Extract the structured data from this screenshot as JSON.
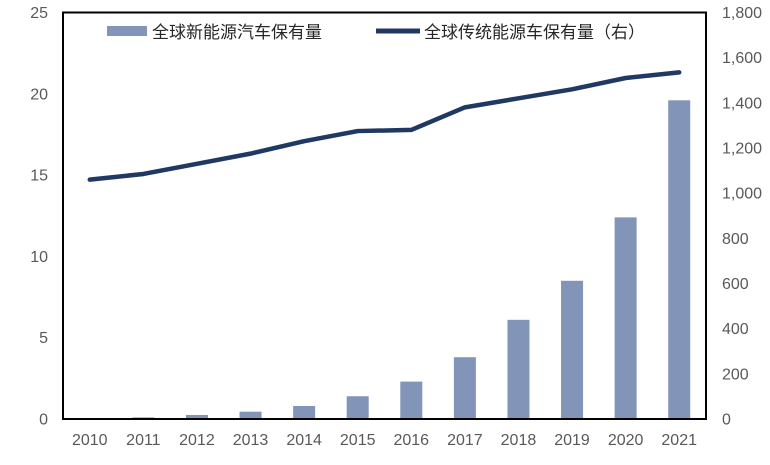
{
  "chart_data": {
    "type": "bar",
    "title": "",
    "categories": [
      "2010",
      "2011",
      "2012",
      "2013",
      "2014",
      "2015",
      "2016",
      "2017",
      "2018",
      "2019",
      "2020",
      "2021"
    ],
    "series": [
      {
        "name": "全球新能源汽车保有量",
        "chart_type": "bar",
        "axis": "left",
        "values": [
          0.02,
          0.1,
          0.25,
          0.45,
          0.8,
          1.4,
          2.3,
          3.8,
          6.1,
          8.5,
          12.4,
          19.6
        ]
      },
      {
        "name": "全球传统能源车保有量（右）",
        "chart_type": "line",
        "axis": "right",
        "values": [
          1060,
          1085,
          1130,
          1175,
          1230,
          1275,
          1280,
          1380,
          1420,
          1460,
          1510,
          1535
        ]
      }
    ],
    "left_axis": {
      "min": 0,
      "max": 25,
      "step": 5,
      "ticks": [
        0,
        5,
        10,
        15,
        20,
        25
      ]
    },
    "right_axis": {
      "min": 0,
      "max": 1800,
      "step": 200,
      "ticks": [
        0,
        200,
        400,
        600,
        800,
        1000,
        1200,
        1400,
        1600,
        1800
      ]
    },
    "grid": false,
    "legend_position": "top-inside",
    "plot_border": true
  },
  "colors": {
    "bar_color": "#8295B8",
    "line_color": "#1F3864",
    "axis_text_color": "#595959",
    "plot_border_color": "#000000",
    "background": "#FFFFFF"
  }
}
